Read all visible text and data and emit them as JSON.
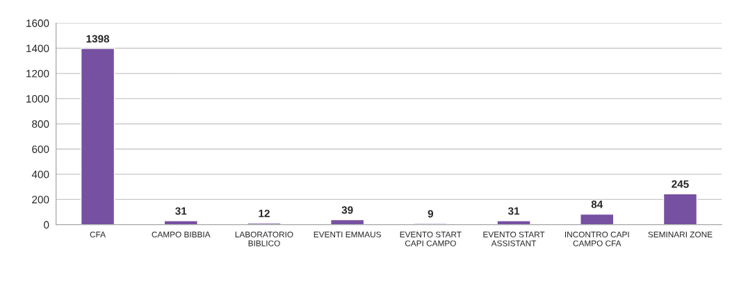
{
  "chart_data": {
    "type": "bar",
    "categories": [
      "CFA",
      "CAMPO BIBBIA",
      "LABORATORIO\nBIBLICO",
      "EVENTI EMMAUS",
      "EVENTO START\nCAPI CAMPO",
      "EVENTO START\nASSISTANT",
      "INCONTRO CAPI\nCAMPO CFA",
      "SEMINARI ZONE"
    ],
    "values": [
      1398,
      31,
      12,
      39,
      9,
      31,
      84,
      245
    ],
    "color": "#7651a1",
    "ylim": [
      0,
      1600
    ],
    "yticks": [
      0,
      200,
      400,
      600,
      800,
      1000,
      1200,
      1400,
      1600
    ],
    "grid": "y",
    "data_labels": true,
    "legend": false
  }
}
